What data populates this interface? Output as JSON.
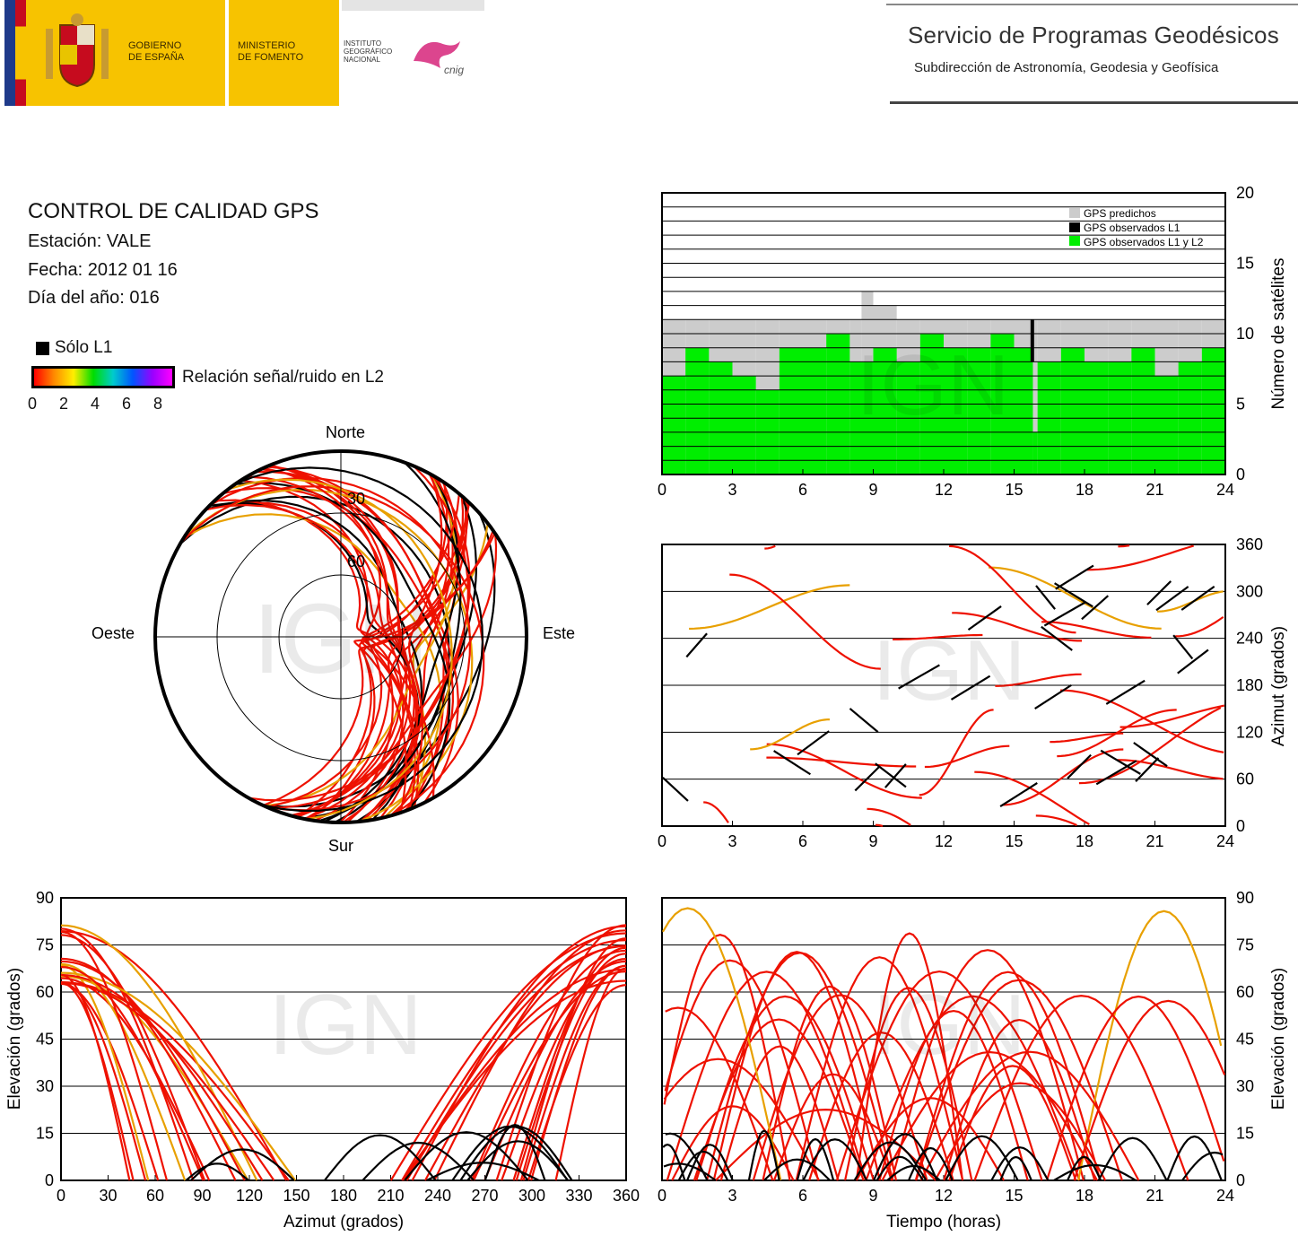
{
  "header": {
    "gov_line1": "GOBIERNO",
    "gov_line2": "DE ESPAÑA",
    "min_line1": "MINISTERIO",
    "min_line2": "DE FOMENTO",
    "ign_line1": "INSTITUTO",
    "ign_line2": "GEOGRÁFICO",
    "ign_line3": "NACIONAL",
    "cnig_logo_text": "cnig",
    "service_title": "Servicio de Programas Geodésicos",
    "service_subtitle": "Subdirección de Astronomía, Geodesia y Geofísica",
    "colors": {
      "gov_yellow": "#f7c300",
      "flag_red": "#c60b1e",
      "eu_blue": "#1f3a8a",
      "cnig_magenta": "#d6247a"
    }
  },
  "info": {
    "title": "CONTROL DE CALIDAD GPS",
    "station": "Estación: VALE",
    "date": "Fecha: 2012 01 16",
    "doy": "Día del año: 016",
    "legend_l1": "Sólo L1",
    "legend_snr": "Relación señal/ruido en L2",
    "colorbar_ticks": [
      "0",
      "2",
      "4",
      "6",
      "8"
    ],
    "colorbar_colors": [
      "#ff0000",
      "#ff8800",
      "#ffee00",
      "#00dd00",
      "#00cccc",
      "#0055ff",
      "#9900ff",
      "#ff00ff"
    ]
  },
  "watermark": "IGN",
  "chart_data": [
    {
      "type": "polar",
      "id": "skyplot",
      "directions": {
        "north": "Norte",
        "south": "Sur",
        "east": "Este",
        "west": "Oeste"
      },
      "ring_labels": [
        "30",
        "60"
      ],
      "rings_elevation": [
        0,
        30,
        60
      ],
      "colors": {
        "l1_only": "#000000",
        "l2": "#ee1100"
      }
    },
    {
      "type": "bar",
      "id": "satellite-count",
      "x_ticks": [
        "0",
        "3",
        "6",
        "9",
        "12",
        "15",
        "18",
        "21",
        "24"
      ],
      "y_ticks": [
        "0",
        "5",
        "10",
        "15",
        "20"
      ],
      "xlim": [
        0,
        24
      ],
      "ylim": [
        0,
        20
      ],
      "ylabel": "Número de satélites",
      "legend": [
        "GPS predichos",
        "GPS observados L1",
        "GPS observados L1 y L2"
      ],
      "legend_placement": "top-right",
      "colors": {
        "predicted": "#cccccc",
        "l1": "#000000",
        "l1l2": "#00ee00"
      },
      "series": [
        {
          "name": "GPS predichos",
          "x": [
            0,
            1,
            2,
            3,
            4,
            5,
            6,
            7,
            8,
            8.5,
            9,
            10,
            11,
            12,
            13,
            14,
            15,
            15.8,
            16,
            17,
            18,
            19,
            20,
            21,
            22,
            23,
            24
          ],
          "y": [
            11,
            11,
            11,
            11,
            11,
            11,
            11,
            11,
            11,
            13,
            12,
            11,
            11,
            11,
            11,
            11,
            11,
            11,
            11,
            11,
            11,
            11,
            11,
            11,
            11,
            11,
            12
          ]
        },
        {
          "name": "GPS observados L1 y L2",
          "x": [
            0,
            1,
            2,
            3,
            4,
            5,
            6,
            7,
            8,
            9,
            10,
            11,
            12,
            13,
            14,
            15,
            15.8,
            16,
            17,
            18,
            19,
            20,
            21,
            22,
            23,
            24
          ],
          "y": [
            7,
            9,
            8,
            7,
            6,
            9,
            9,
            10,
            8,
            9,
            8,
            10,
            9,
            9,
            10,
            9,
            3,
            8,
            9,
            8,
            8,
            9,
            7,
            8,
            9,
            8
          ]
        }
      ]
    },
    {
      "type": "scatter",
      "id": "azimuth-time",
      "x_ticks": [
        "0",
        "3",
        "6",
        "9",
        "12",
        "15",
        "18",
        "21",
        "24"
      ],
      "y_ticks": [
        "0",
        "60",
        "120",
        "180",
        "240",
        "300",
        "360"
      ],
      "xlim": [
        0,
        24
      ],
      "ylim": [
        0,
        360
      ],
      "ylabel": "Azimut (grados)"
    },
    {
      "type": "scatter",
      "id": "elevation-azimuth",
      "x_ticks": [
        "0",
        "30",
        "60",
        "90",
        "120",
        "150",
        "180",
        "210",
        "240",
        "270",
        "300",
        "330",
        "360"
      ],
      "y_ticks": [
        "0",
        "15",
        "30",
        "45",
        "60",
        "75",
        "90"
      ],
      "xlim": [
        0,
        360
      ],
      "ylim": [
        0,
        90
      ],
      "xlabel": "Azimut (grados)",
      "ylabel": "Elevación (grados)"
    },
    {
      "type": "line",
      "id": "elevation-time",
      "x_ticks": [
        "0",
        "3",
        "6",
        "9",
        "12",
        "15",
        "18",
        "21",
        "24"
      ],
      "y_ticks": [
        "0",
        "15",
        "30",
        "45",
        "60",
        "75",
        "90"
      ],
      "xlim": [
        0,
        24
      ],
      "ylim": [
        0,
        90
      ],
      "xlabel": "Tiempo (horas)",
      "ylabel": "Elevación (grados)"
    }
  ]
}
